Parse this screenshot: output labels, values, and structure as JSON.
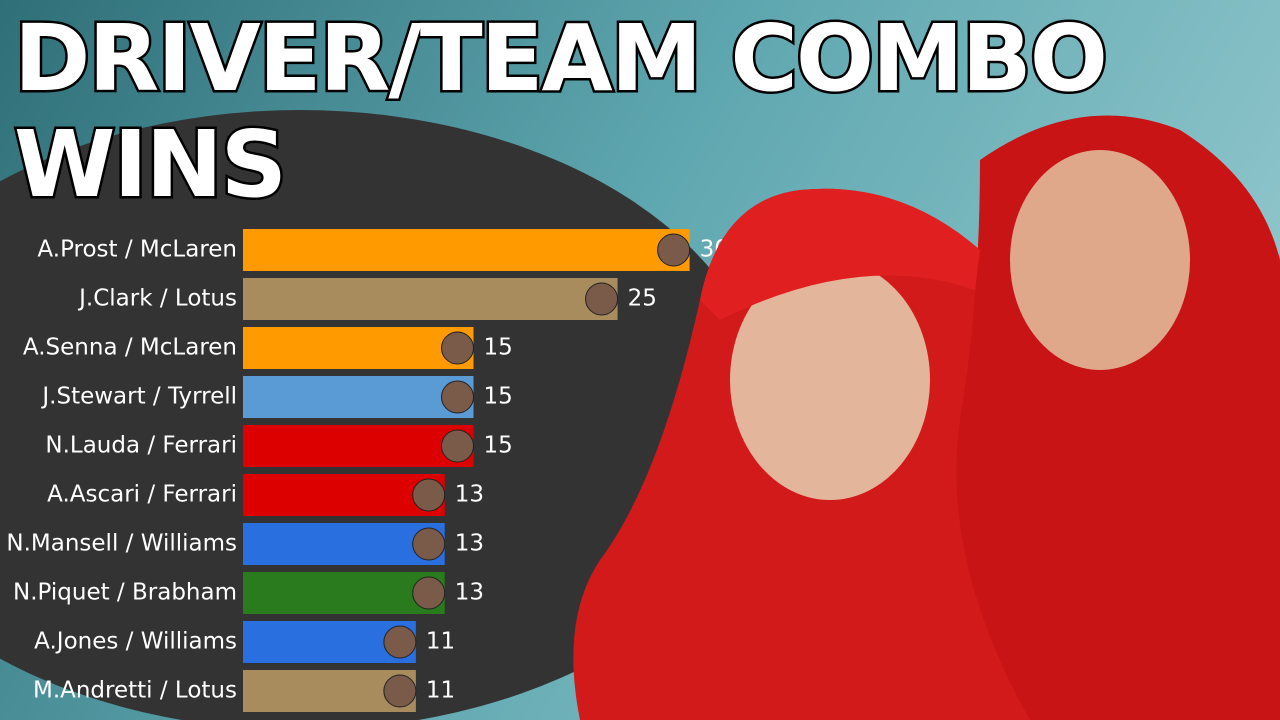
{
  "chart_data": {
    "type": "barh",
    "title": "DRIVER/TEAM COMBO\nWINS",
    "categories": [
      "A.Prost / McLaren",
      "J.Clark / Lotus",
      "A.Senna / McLaren",
      "J.Stewart / Tyrrell",
      "N.Lauda / Ferrari",
      "A.Ascari / Ferrari",
      "N.Mansell / Williams",
      "N.Piquet / Brabham",
      "A.Jones / Williams",
      "M.Andretti / Lotus"
    ],
    "values": [
      30,
      25,
      15,
      15,
      15,
      13,
      13,
      13,
      11,
      11
    ],
    "colors": [
      "#ff9b00",
      "#a88c5e",
      "#ff9b00",
      "#5a9bd5",
      "#dd0000",
      "#dd0000",
      "#2a6fe0",
      "#2a7a1e",
      "#2a6fe0",
      "#a88c5e"
    ],
    "xlim": [
      -1,
      31
    ]
  }
}
